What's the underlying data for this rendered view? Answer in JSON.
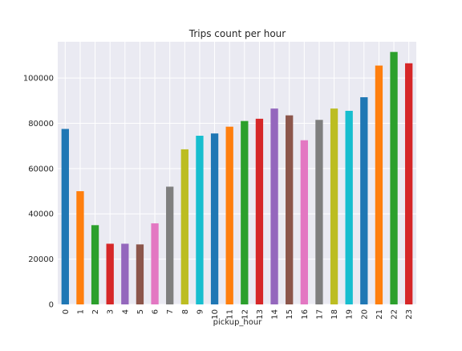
{
  "chart_data": {
    "type": "bar",
    "title": "Trips count per hour",
    "xlabel": "pickup_hour",
    "ylabel": "",
    "categories": [
      "0",
      "1",
      "2",
      "3",
      "4",
      "5",
      "6",
      "7",
      "8",
      "9",
      "10",
      "11",
      "12",
      "13",
      "14",
      "15",
      "16",
      "17",
      "18",
      "19",
      "20",
      "21",
      "22",
      "23"
    ],
    "values": [
      77500,
      50000,
      35000,
      26800,
      26800,
      26500,
      35800,
      52000,
      68500,
      74500,
      75500,
      78500,
      81000,
      82000,
      86500,
      83500,
      72500,
      81500,
      86500,
      85500,
      91500,
      105500,
      111500,
      106500
    ],
    "ylim": [
      0,
      116000
    ],
    "yticks": [
      0,
      20000,
      40000,
      60000,
      80000,
      100000
    ],
    "ytick_labels": [
      "0",
      "20000",
      "40000",
      "60000",
      "80000",
      "100000"
    ],
    "grid": true,
    "style": {
      "plot_background": "#eaeaf2",
      "grid_color": "#ffffff",
      "bar_colors": [
        "#1f77b4",
        "#ff7f0e",
        "#2ca02c",
        "#d62728",
        "#9467bd",
        "#8c564b",
        "#e377c2",
        "#7f7f7f",
        "#bcbd22",
        "#17becf"
      ]
    }
  }
}
